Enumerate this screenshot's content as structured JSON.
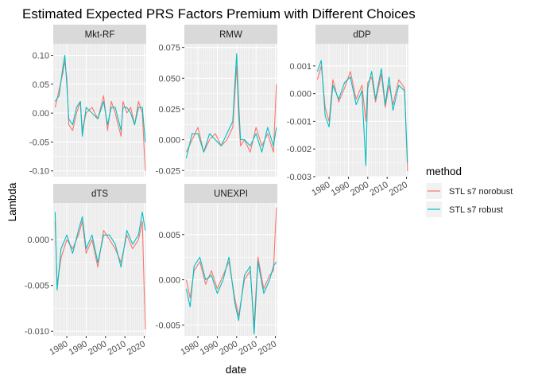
{
  "chart_data": {
    "type": "line",
    "title": "Estimated Expected PRS Factors Premium with Different Choices",
    "xlabel": "date",
    "ylabel": "Lambda",
    "xlim": [
      1973,
      2021
    ],
    "x_ticks": [
      1980,
      1990,
      2000,
      2010,
      2020
    ],
    "x_tick_labels": [
      "1980",
      "1990",
      "2000",
      "2010",
      "2020"
    ],
    "grid": true,
    "legend": {
      "title": "method",
      "position": "right",
      "entries": [
        "STL s7 norobust",
        "STL s7 robust"
      ]
    },
    "series_colors": {
      "STL s7 norobust": "#F8766D",
      "STL s7 robust": "#00BFC4"
    },
    "panels": [
      {
        "name": "Mkt-RF",
        "ylim": [
          -0.11,
          0.12
        ],
        "y_ticks": [
          -0.1,
          -0.05,
          0.0,
          0.05,
          0.1
        ],
        "y_tick_labels": [
          "-0.10",
          "-0.05",
          "0.00",
          "0.05",
          "0.10"
        ],
        "series": [
          {
            "name": "STL s7 norobust",
            "x": [
              1974,
              1976,
              1978,
              1979,
              1980,
              1981,
              1983,
              1985,
              1987,
              1988,
              1990,
              1993,
              1996,
              1999,
              2001,
              2003,
              2005,
              2008,
              2009,
              2011,
              2013,
              2015,
              2017,
              2019,
              2020.5
            ],
            "y": [
              0.01,
              0.04,
              0.07,
              0.09,
              0.06,
              -0.02,
              -0.03,
              0.0,
              0.02,
              -0.03,
              0.0,
              0.01,
              -0.01,
              0.03,
              -0.03,
              0.02,
              0.0,
              -0.04,
              0.02,
              0.0,
              0.01,
              -0.02,
              0.02,
              0.0,
              -0.1
            ]
          },
          {
            "name": "STL s7 robust",
            "x": [
              1974,
              1976,
              1978,
              1979,
              1980,
              1981,
              1983,
              1985,
              1987,
              1988,
              1990,
              1993,
              1996,
              1999,
              2001,
              2003,
              2005,
              2008,
              2009,
              2011,
              2013,
              2015,
              2017,
              2019,
              2020.5
            ],
            "y": [
              0.02,
              0.03,
              0.08,
              0.1,
              0.05,
              -0.01,
              -0.02,
              0.01,
              0.02,
              -0.04,
              0.01,
              0.0,
              -0.01,
              0.02,
              -0.02,
              0.01,
              0.01,
              -0.03,
              0.01,
              0.01,
              0.0,
              -0.02,
              0.01,
              0.01,
              -0.05
            ]
          }
        ]
      },
      {
        "name": "RMW",
        "ylim": [
          -0.03,
          0.078
        ],
        "y_ticks": [
          -0.025,
          0.0,
          0.025,
          0.05,
          0.075
        ],
        "y_tick_labels": [
          "-0.025",
          "0.000",
          "0.025",
          "0.050",
          "0.075"
        ],
        "series": [
          {
            "name": "STL s7 norobust",
            "x": [
              1974,
              1977,
              1980,
              1983,
              1986,
              1989,
              1992,
              1995,
              1998,
              2000,
              2001,
              2002,
              2004,
              2007,
              2010,
              2013,
              2016,
              2019,
              2020.5
            ],
            "y": [
              -0.01,
              0.0,
              0.01,
              -0.01,
              0.0,
              0.005,
              -0.005,
              0.0,
              0.01,
              0.06,
              0.02,
              -0.005,
              0.0,
              -0.01,
              0.01,
              -0.005,
              0.005,
              -0.01,
              0.045
            ]
          },
          {
            "name": "STL s7 robust",
            "x": [
              1974,
              1977,
              1980,
              1983,
              1986,
              1989,
              1992,
              1995,
              1998,
              2000,
              2001,
              2002,
              2004,
              2007,
              2010,
              2013,
              2016,
              2019,
              2020.5
            ],
            "y": [
              -0.015,
              0.005,
              0.005,
              -0.01,
              0.005,
              0.0,
              -0.005,
              0.005,
              0.015,
              0.07,
              0.03,
              0.0,
              0.0,
              -0.005,
              0.005,
              -0.01,
              0.01,
              -0.005,
              0.01
            ]
          }
        ]
      },
      {
        "name": "dDP",
        "ylim": [
          -0.003,
          0.0018
        ],
        "y_ticks": [
          -0.003,
          -0.002,
          -0.001,
          0.0,
          0.001
        ],
        "y_tick_labels": [
          "-0.003",
          "-0.002",
          "-0.001",
          "0.000",
          "0.001"
        ],
        "series": [
          {
            "name": "STL s7 norobust",
            "x": [
              1974,
              1976,
              1978,
              1980,
              1982,
              1985,
              1988,
              1991,
              1994,
              1997,
              1999,
              2000,
              2002,
              2004,
              2007,
              2009,
              2011,
              2013,
              2016,
              2019,
              2020.5
            ],
            "y": [
              0.0005,
              0.001,
              -0.0005,
              -0.001,
              0.0005,
              -0.0003,
              0.0002,
              0.0008,
              -0.0002,
              0.0003,
              -0.001,
              0.0004,
              0.0006,
              -0.0003,
              0.0007,
              -0.0005,
              0.0003,
              -0.0004,
              0.0005,
              0.0002,
              -0.0028
            ]
          },
          {
            "name": "STL s7 robust",
            "x": [
              1974,
              1976,
              1978,
              1980,
              1982,
              1985,
              1988,
              1991,
              1994,
              1997,
              1999,
              2000,
              2002,
              2004,
              2007,
              2009,
              2011,
              2013,
              2016,
              2019,
              2020.5
            ],
            "y": [
              0.0008,
              0.0012,
              -0.0008,
              -0.0012,
              0.0003,
              -0.0002,
              0.0004,
              0.0006,
              -0.0004,
              0.0001,
              -0.0026,
              0.0002,
              0.0008,
              -0.0002,
              0.0009,
              -0.0004,
              0.0006,
              -0.0006,
              0.0003,
              0.0001,
              -0.0025
            ]
          }
        ]
      },
      {
        "name": "dTS",
        "ylim": [
          -0.0105,
          0.004
        ],
        "y_ticks": [
          -0.01,
          -0.005,
          0.0
        ],
        "y_tick_labels": [
          "-0.010",
          "-0.005",
          "0.000"
        ],
        "series": [
          {
            "name": "STL s7 norobust",
            "x": [
              1974,
              1975,
              1977,
              1980,
              1983,
              1986,
              1988,
              1990,
              1993,
              1996,
              1999,
              2002,
              2005,
              2008,
              2011,
              2014,
              2017,
              2019,
              2020.5
            ],
            "y": [
              0.002,
              -0.005,
              -0.002,
              0.0,
              -0.001,
              0.0005,
              0.002,
              -0.0015,
              0.0,
              -0.003,
              0.001,
              0.0,
              -0.001,
              -0.0025,
              0.0005,
              -0.001,
              0.0,
              0.002,
              -0.0098
            ]
          },
          {
            "name": "STL s7 robust",
            "x": [
              1974,
              1975,
              1977,
              1980,
              1983,
              1986,
              1988,
              1990,
              1993,
              1996,
              1999,
              2002,
              2005,
              2008,
              2011,
              2014,
              2017,
              2019,
              2020.5
            ],
            "y": [
              0.003,
              -0.0055,
              -0.001,
              0.0005,
              -0.0015,
              0.001,
              0.0025,
              -0.001,
              0.0005,
              -0.0025,
              0.0005,
              0.0005,
              -0.0005,
              -0.003,
              0.001,
              -0.0005,
              0.0005,
              0.003,
              0.001
            ]
          }
        ]
      },
      {
        "name": "UNEXPI",
        "ylim": [
          -0.0062,
          0.0085
        ],
        "y_ticks": [
          -0.005,
          0.0,
          0.005
        ],
        "y_tick_labels": [
          "-0.005",
          "0.000",
          "0.005"
        ],
        "series": [
          {
            "name": "STL s7 norobust",
            "x": [
              1974,
              1976,
              1978,
              1981,
              1984,
              1987,
              1990,
              1993,
              1996,
              1999,
              2001,
              2004,
              2007,
              2009,
              2011,
              2014,
              2017,
              2019,
              2020.5
            ],
            "y": [
              0.0,
              -0.002,
              0.001,
              0.002,
              -0.0005,
              0.001,
              -0.001,
              0.0005,
              0.002,
              -0.002,
              -0.004,
              0.0,
              0.001,
              -0.005,
              0.0025,
              -0.001,
              0.0005,
              0.001,
              0.008
            ]
          },
          {
            "name": "STL s7 robust",
            "x": [
              1974,
              1976,
              1978,
              1981,
              1984,
              1987,
              1990,
              1993,
              1996,
              1999,
              2001,
              2004,
              2007,
              2009,
              2011,
              2014,
              2017,
              2019,
              2020.5
            ],
            "y": [
              -0.001,
              -0.003,
              0.0015,
              0.0025,
              0.0,
              0.0005,
              -0.0015,
              0.0,
              0.0025,
              -0.0025,
              -0.0045,
              0.0005,
              0.0015,
              -0.006,
              0.002,
              -0.0015,
              0.0,
              0.0015,
              0.002
            ]
          }
        ]
      }
    ]
  }
}
